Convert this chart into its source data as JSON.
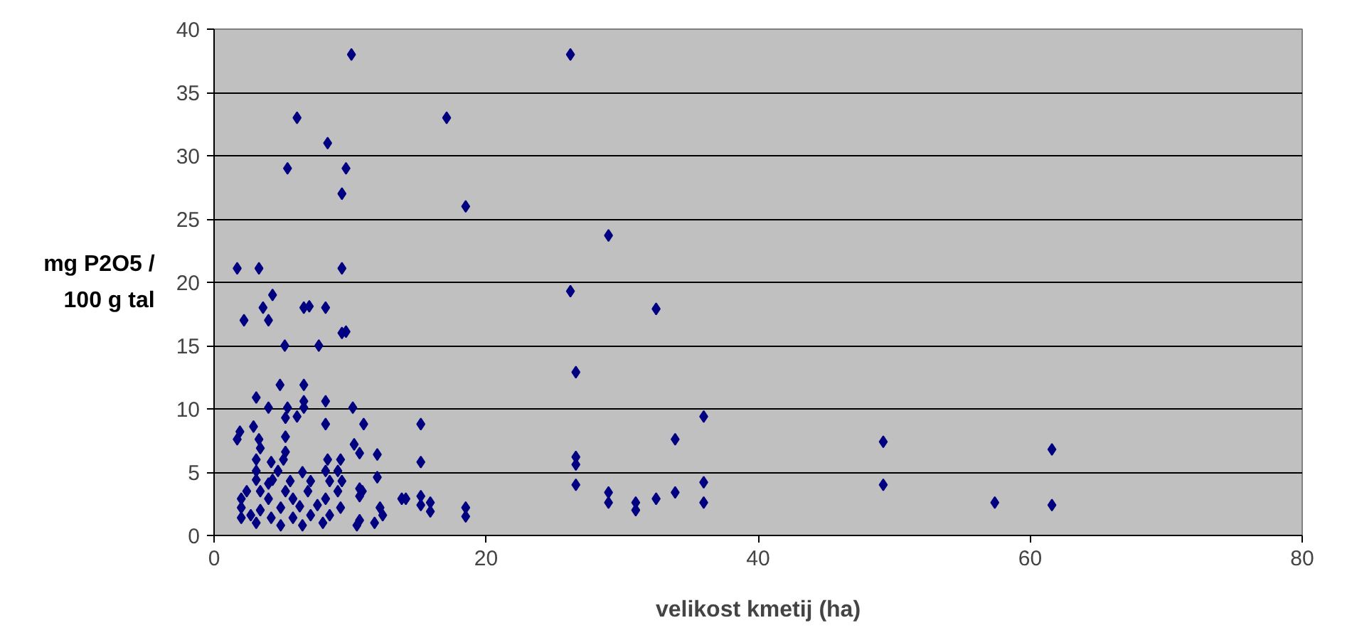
{
  "chart_data": {
    "type": "scatter",
    "xlabel": "velikost kmetij (ha)",
    "ylabel": "mg P2O5 /\n100 g tal",
    "xlim": [
      0,
      80
    ],
    "xticks": [
      0,
      20,
      40,
      60,
      80
    ],
    "ylim": [
      0,
      40
    ],
    "yticks": [
      0,
      5,
      10,
      15,
      20,
      25,
      30,
      35,
      40
    ],
    "grid": "y",
    "marker": "diamond",
    "series": [
      {
        "color": "#000080",
        "x": [
          10.1,
          6.1,
          17.1,
          8.35,
          5.4,
          9.7,
          9.4,
          18.5,
          1.7,
          3.3,
          9.4,
          4.3,
          3.6,
          6.6,
          7.0,
          8.2,
          2.2,
          4.0,
          9.4,
          9.7,
          5.2,
          7.7,
          26.2,
          29.0,
          26.2,
          32.5,
          26.6,
          15.2,
          36.0,
          33.9,
          15.2,
          26.6,
          26.6,
          26.6,
          29.0,
          29.0,
          31.0,
          31.0,
          32.5,
          33.9,
          36.0,
          36.0,
          14.1,
          15.2,
          15.2,
          15.9,
          15.9,
          18.5,
          18.5,
          49.2,
          61.6,
          49.2,
          57.4,
          61.6,
          4.85,
          6.6,
          3.1,
          4.0,
          5.4,
          6.6,
          6.6,
          8.2,
          10.2,
          5.25,
          6.1,
          8.2,
          11.0,
          2.9,
          1.9,
          1.7,
          3.3,
          5.25,
          10.3,
          3.4,
          10.7,
          12.0,
          5.25,
          3.1,
          4.2,
          5.1,
          8.35,
          9.3,
          3.1,
          4.7,
          6.5,
          8.2,
          9.1,
          12.0,
          3.1,
          4.3,
          8.5,
          2.4,
          3.4,
          5.25,
          6.9,
          9.1,
          10.9,
          10.7,
          13.8,
          2.0,
          3.4,
          4.9,
          6.3,
          7.6,
          9.3,
          12.2,
          12.4,
          11.8,
          10.7,
          10.5,
          3.1,
          4.9,
          6.5,
          8.0,
          2.0,
          2.7,
          4.2,
          5.8,
          7.1,
          8.5,
          2.0,
          4.0,
          5.8,
          8.2,
          4.0,
          5.6,
          7.1,
          9.4,
          10.7
        ],
        "values": [
          38.0,
          33.0,
          33.0,
          31.0,
          29.0,
          29.0,
          27.0,
          26.0,
          21.1,
          21.1,
          21.1,
          19.0,
          18.0,
          18.0,
          18.1,
          18.0,
          17.0,
          17.0,
          16.0,
          16.1,
          15.0,
          15.0,
          38.0,
          23.7,
          19.3,
          17.9,
          12.9,
          8.8,
          9.4,
          7.6,
          5.8,
          6.2,
          5.6,
          4.0,
          3.4,
          2.6,
          2.6,
          2.0,
          2.9,
          3.4,
          4.2,
          2.6,
          2.9,
          3.1,
          2.4,
          2.6,
          1.9,
          2.2,
          1.5,
          7.4,
          6.8,
          4.0,
          2.6,
          2.4,
          11.9,
          11.9,
          10.9,
          10.1,
          10.1,
          10.6,
          10.1,
          10.6,
          10.1,
          9.3,
          9.4,
          8.8,
          8.8,
          8.6,
          8.2,
          7.6,
          7.6,
          7.8,
          7.2,
          6.9,
          6.5,
          6.4,
          6.6,
          6.0,
          5.8,
          6.0,
          6.0,
          6.0,
          5.1,
          5.1,
          5.0,
          5.1,
          5.1,
          4.6,
          4.4,
          4.4,
          4.3,
          3.5,
          3.5,
          3.5,
          3.5,
          3.5,
          3.5,
          3.1,
          2.9,
          2.2,
          2.0,
          2.2,
          2.3,
          2.4,
          2.2,
          2.2,
          1.6,
          1.0,
          1.2,
          0.8,
          1.0,
          0.8,
          0.8,
          1.0,
          1.4,
          1.6,
          1.4,
          1.4,
          1.6,
          1.6,
          2.9,
          2.9,
          2.9,
          2.9,
          4.1,
          4.3,
          4.3,
          4.3,
          3.7
        ]
      }
    ]
  }
}
